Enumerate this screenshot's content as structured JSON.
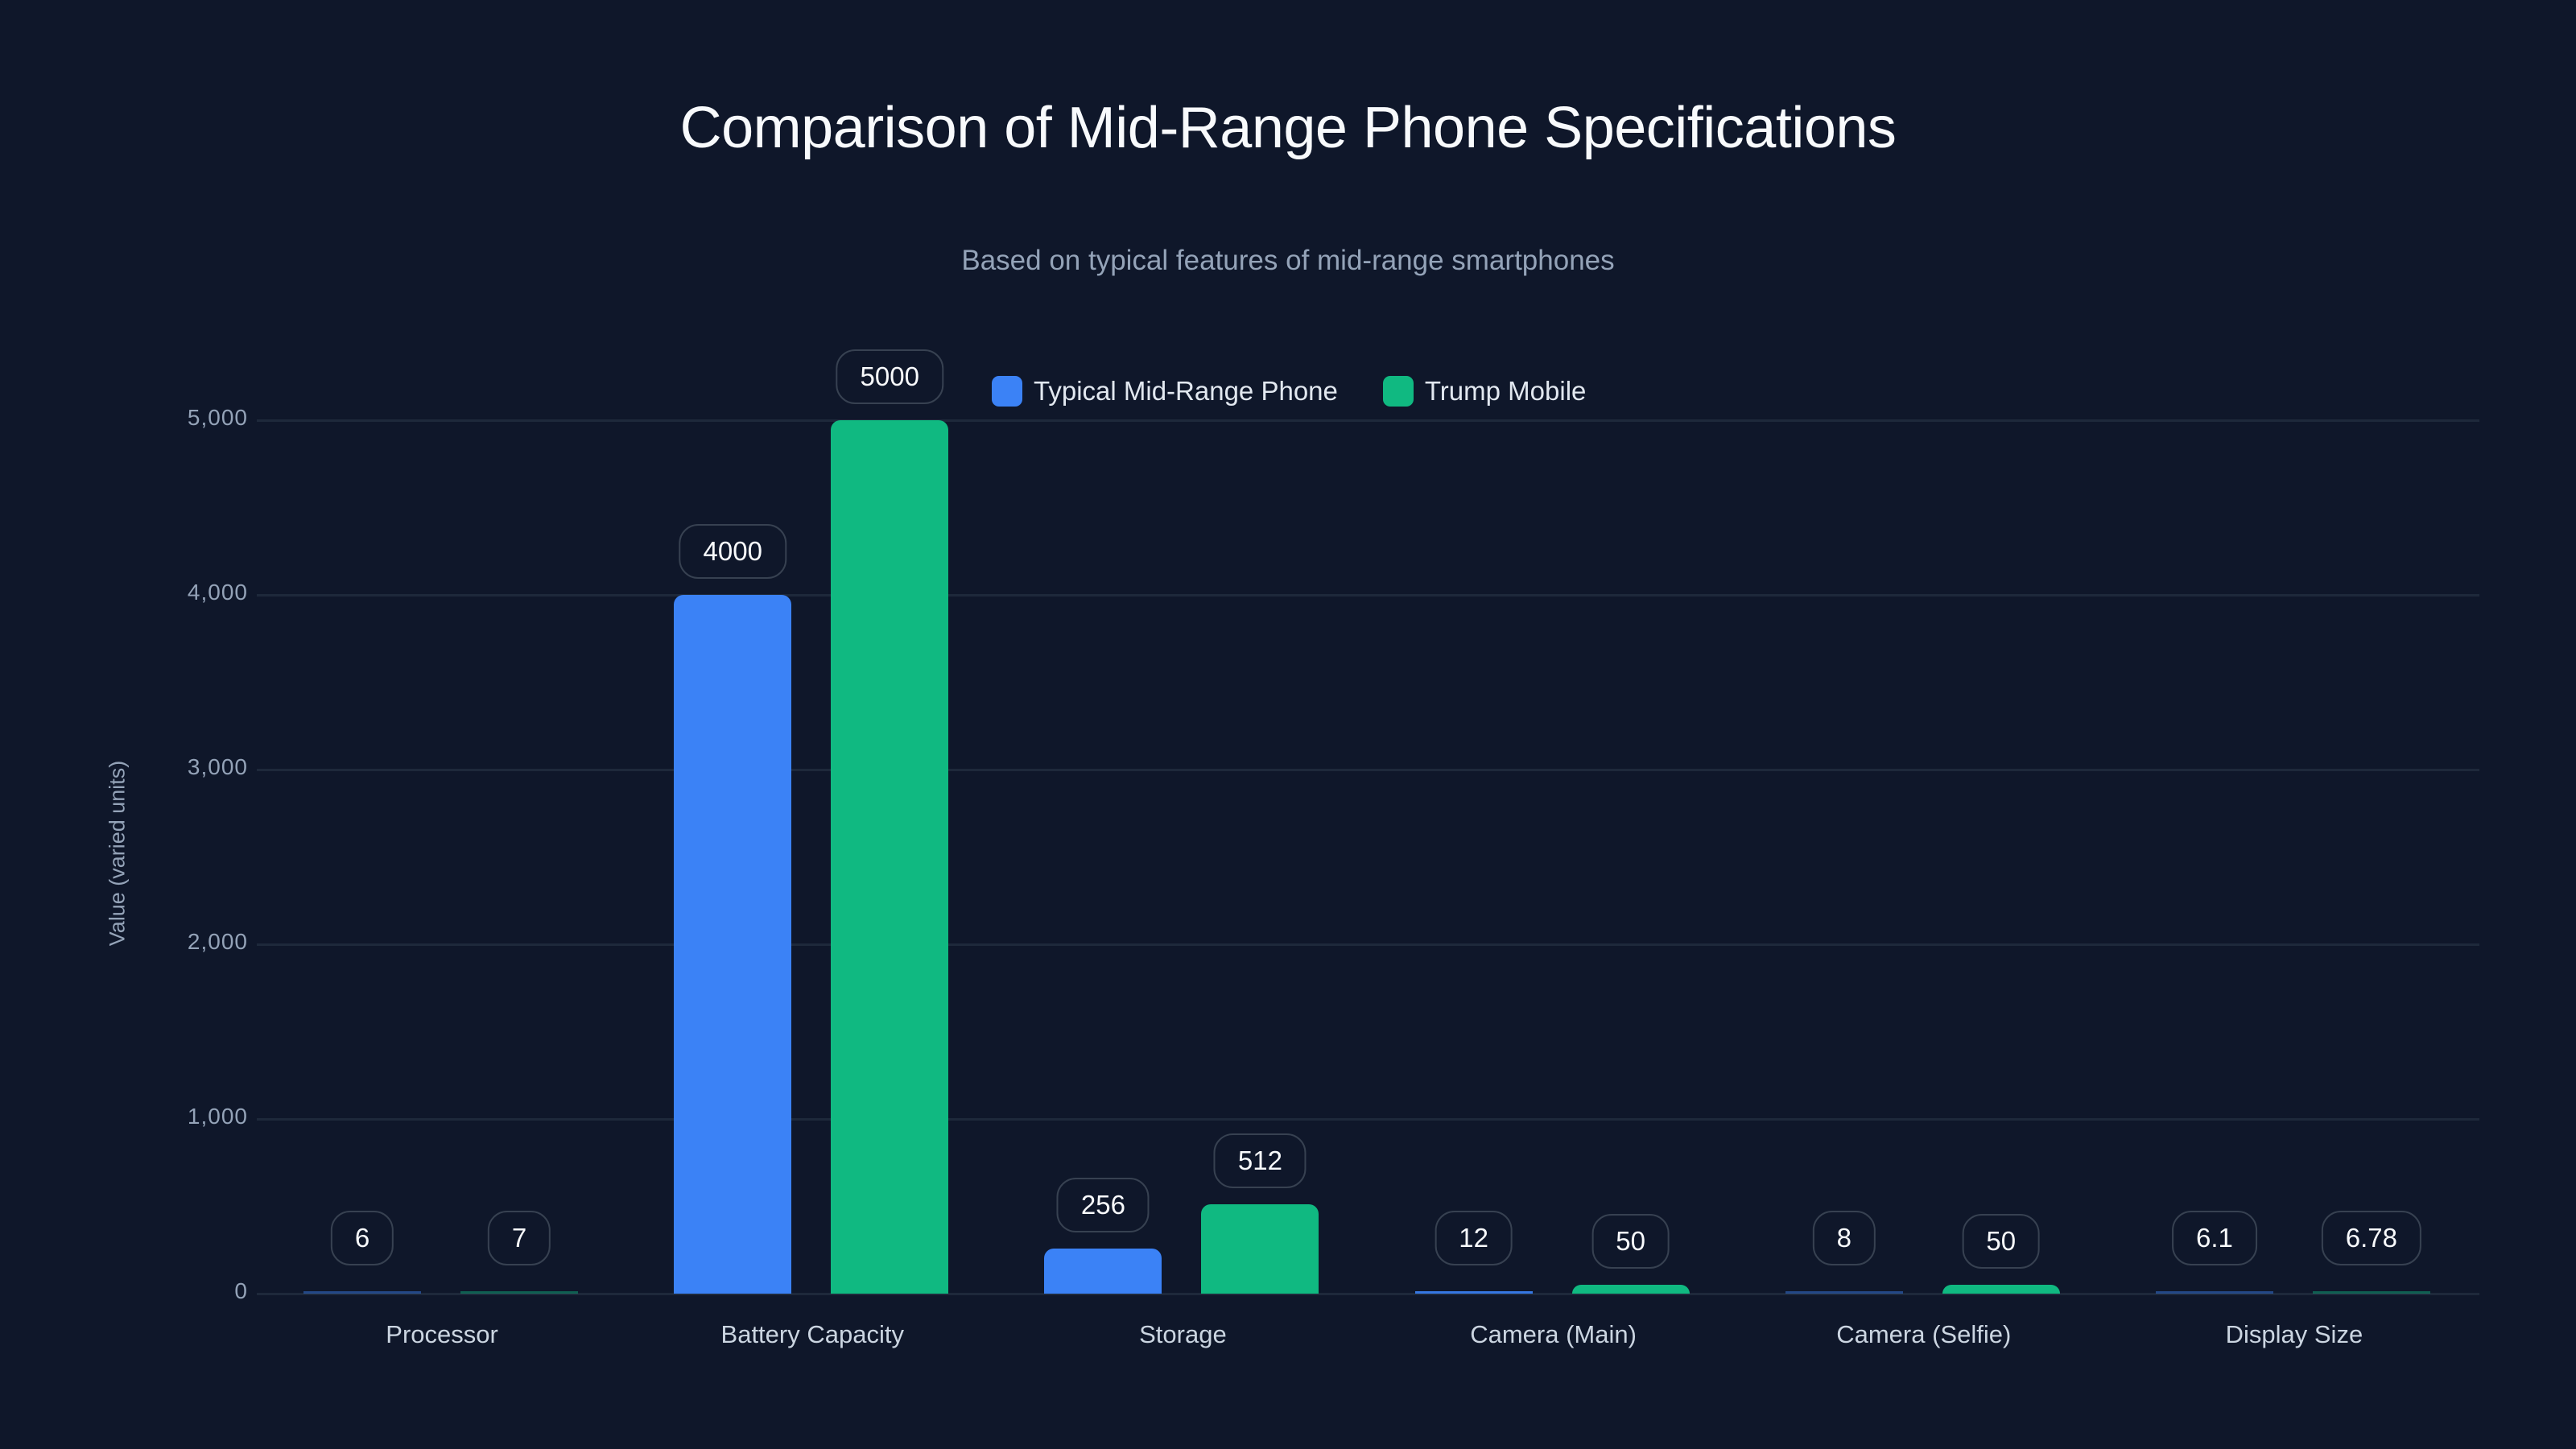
{
  "chart": {
    "title": "Comparison of Mid-Range Phone Specifications",
    "subtitle": "Based on typical features of mid-range smartphones",
    "ylabel": "Value (varied units)",
    "yticks": [
      "0",
      "1,000",
      "2,000",
      "3,000",
      "4,000",
      "5,000"
    ],
    "legend": [
      {
        "label": "Typical Mid-Range Phone",
        "color": "#3b82f6"
      },
      {
        "label": "Trump Mobile",
        "color": "#10b981"
      }
    ],
    "categories": [
      "Processor",
      "Battery Capacity",
      "Storage",
      "Camera (Main)",
      "Camera (Selfie)",
      "Display Size"
    ],
    "value_labels": {
      "typical": [
        "6",
        "4000",
        "256",
        "12",
        "8",
        "6.1"
      ],
      "trump": [
        "7",
        "5000",
        "512",
        "50",
        "50",
        "6.78"
      ]
    }
  },
  "chart_data": {
    "type": "bar",
    "title": "Comparison of Mid-Range Phone Specifications",
    "subtitle": "Based on typical features of mid-range smartphones",
    "xlabel": "",
    "ylabel": "Value (varied units)",
    "ylim": [
      0,
      5000
    ],
    "yticks": [
      0,
      1000,
      2000,
      3000,
      4000,
      5000
    ],
    "grid": true,
    "legend_position": "top",
    "categories": [
      "Processor",
      "Battery Capacity",
      "Storage",
      "Camera (Main)",
      "Camera (Selfie)",
      "Display Size"
    ],
    "series": [
      {
        "name": "Typical Mid-Range Phone",
        "color": "#3b82f6",
        "values": [
          6,
          4000,
          256,
          12,
          8,
          6.1
        ]
      },
      {
        "name": "Trump Mobile",
        "color": "#10b981",
        "values": [
          7,
          5000,
          512,
          50,
          50,
          6.78
        ]
      }
    ]
  }
}
